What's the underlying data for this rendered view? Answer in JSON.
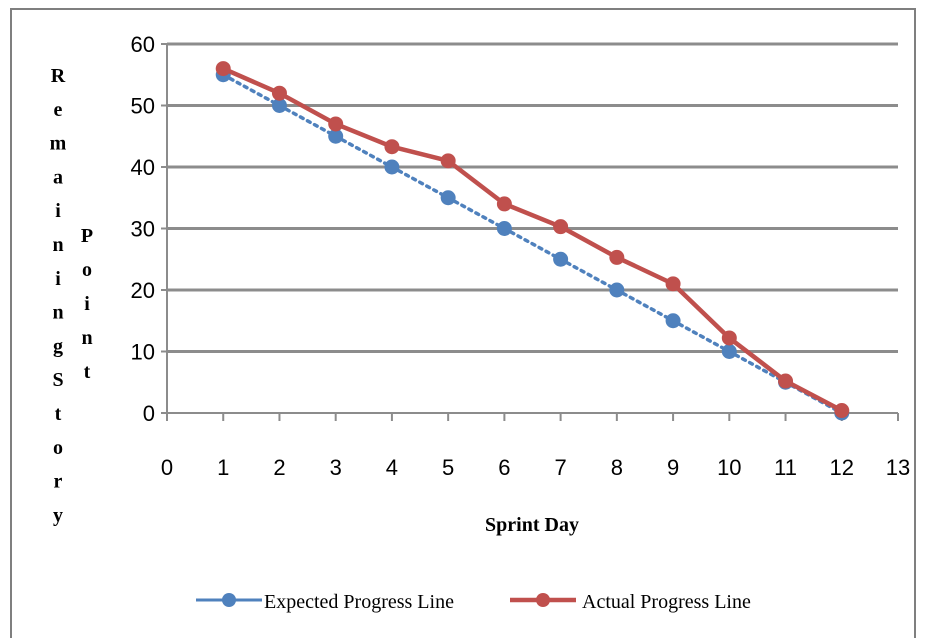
{
  "chart_data": {
    "type": "line",
    "title": "",
    "xlabel": "Sprint Day",
    "ylabel_left": "Remaining Story",
    "ylabel_right": "Point",
    "xlim": [
      0,
      13
    ],
    "ylim": [
      0,
      60
    ],
    "x_ticks": [
      "0",
      "1",
      "2",
      "3",
      "4",
      "5",
      "6",
      "7",
      "8",
      "9",
      "10",
      "11",
      "12",
      "13"
    ],
    "y_ticks": [
      "0",
      "10",
      "20",
      "30",
      "40",
      "50",
      "60"
    ],
    "grid": true,
    "legend_position": "bottom",
    "series": [
      {
        "name": "Expected Progress Line",
        "color": "#4f81bd",
        "style": "dotted",
        "x": [
          1,
          2,
          3,
          4,
          5,
          6,
          7,
          8,
          9,
          10,
          11,
          12
        ],
        "y": [
          55,
          50,
          45,
          40,
          35,
          30,
          25,
          20,
          15,
          10,
          5,
          0
        ]
      },
      {
        "name": "Actual Progress Line",
        "color": "#c0504d",
        "style": "solid",
        "x": [
          1,
          2,
          3,
          4,
          5,
          6,
          7,
          8,
          9,
          10,
          11,
          12
        ],
        "y": [
          56,
          52,
          47,
          43.3,
          41,
          34,
          30.3,
          25.3,
          21,
          12.2,
          5.2,
          0.4
        ]
      }
    ]
  }
}
